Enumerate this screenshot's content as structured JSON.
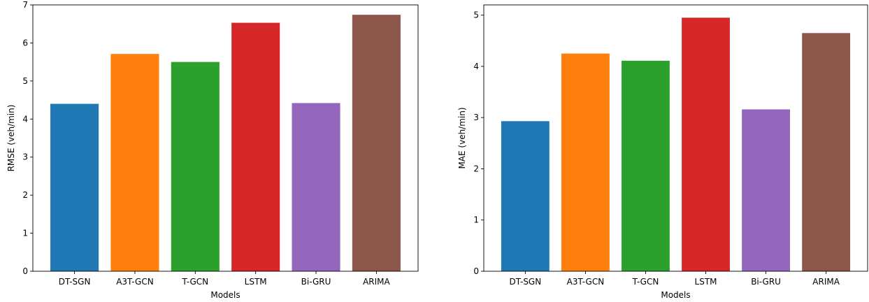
{
  "chart_data": [
    {
      "type": "bar",
      "categories": [
        "DT-SGN",
        "A3T-GCN",
        "T-GCN",
        "LSTM",
        "Bi-GRU",
        "ARIMA"
      ],
      "values": [
        4.4,
        5.71,
        5.5,
        6.53,
        4.42,
        6.74
      ],
      "colors": [
        "#1f77b4",
        "#ff7f0e",
        "#2ca02c",
        "#d62728",
        "#9467bd",
        "#8c564b"
      ],
      "xlabel": "Models",
      "ylabel": "RMSE (veh/min)",
      "ylim": [
        0,
        7
      ],
      "yticks": [
        0,
        1,
        2,
        3,
        4,
        5,
        6,
        7
      ],
      "grid": false
    },
    {
      "type": "bar",
      "categories": [
        "DT-SGN",
        "A3T-GCN",
        "T-GCN",
        "LSTM",
        "Bi-GRU",
        "ARIMA"
      ],
      "values": [
        2.93,
        4.25,
        4.11,
        4.95,
        3.16,
        4.65
      ],
      "colors": [
        "#1f77b4",
        "#ff7f0e",
        "#2ca02c",
        "#d62728",
        "#9467bd",
        "#8c564b"
      ],
      "xlabel": "Models",
      "ylabel": "MAE (veh/min)",
      "ylim": [
        0,
        5.2
      ],
      "yticks": [
        0,
        1,
        2,
        3,
        4,
        5
      ],
      "grid": false
    }
  ]
}
